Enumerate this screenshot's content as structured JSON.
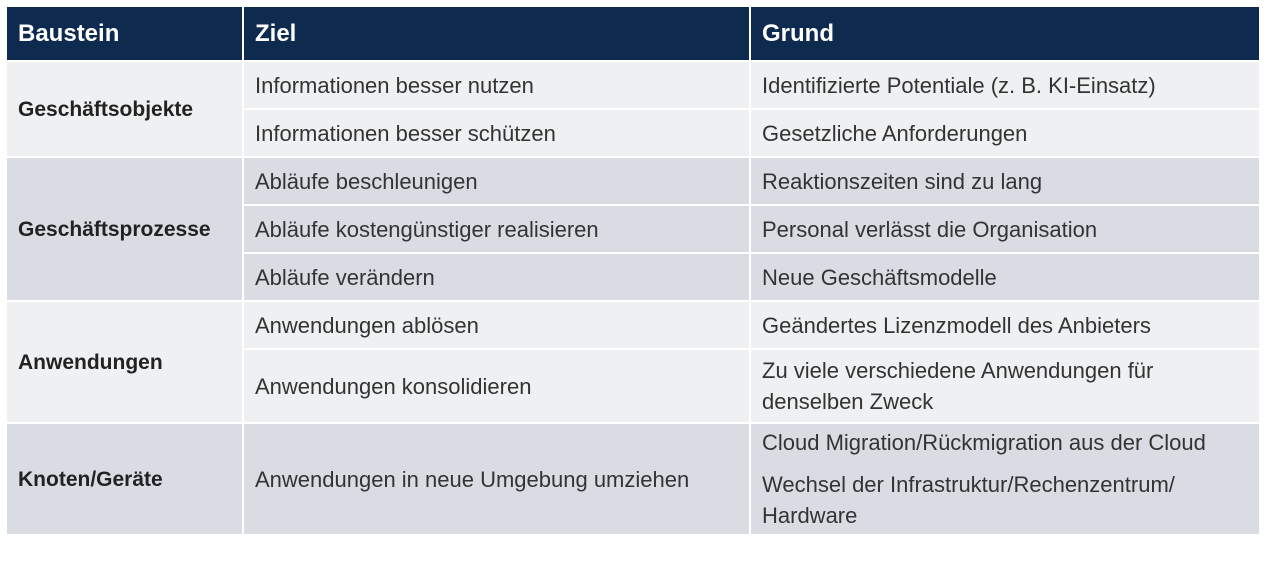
{
  "header": {
    "baustein": "Baustein",
    "ziel": "Ziel",
    "grund": "Grund"
  },
  "groups": [
    {
      "baustein": "Geschäftsobjekte",
      "rows": [
        {
          "ziel": "Informationen besser nutzen",
          "grund": "Identifizierte Potentiale (z. B. KI-Einsatz)"
        },
        {
          "ziel": "Informationen besser schützen",
          "grund": "Gesetzliche Anforderungen"
        }
      ]
    },
    {
      "baustein": "Geschäftsprozesse",
      "rows": [
        {
          "ziel": "Abläufe beschleunigen",
          "grund": "Reaktionszeiten sind zu lang"
        },
        {
          "ziel": "Abläufe kostengünstiger realisieren",
          "grund": "Personal verlässt die Organisation"
        },
        {
          "ziel": "Abläufe verändern",
          "grund": "Neue Geschäftsmodelle"
        }
      ]
    },
    {
      "baustein": "Anwendungen",
      "rows": [
        {
          "ziel": "Anwendungen ablösen",
          "grund": "Geändertes Lizenzmodell des Anbieters"
        },
        {
          "ziel": "Anwendungen konsolidieren",
          "grund": "Zu viele verschiedene Anwendungen für denselben Zweck"
        }
      ]
    },
    {
      "baustein": "Knoten/Geräte",
      "rows": [
        {
          "ziel": "Anwendungen in neue Umgebung umziehen",
          "grund": [
            "Cloud Migration/Rückmigration aus der Cloud",
            "Wechsel der Infrastruktur/Rechenzentrum/ Hardware"
          ]
        }
      ]
    }
  ],
  "colors": {
    "header_bg": "#0e2a4f",
    "row_light": "#eef0f2",
    "row_dark": "#d9dde3"
  }
}
